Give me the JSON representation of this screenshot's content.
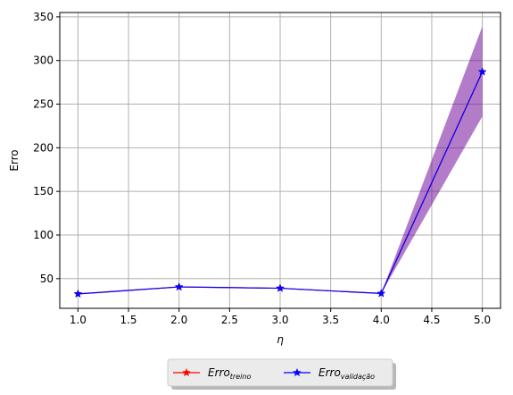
{
  "chart_data": {
    "type": "line",
    "title": "",
    "xlabel": "η",
    "ylabel": "Erro",
    "x": [
      1.0,
      2.0,
      3.0,
      4.0,
      5.0
    ],
    "xlim": [
      0.82,
      5.18
    ],
    "ylim": [
      16,
      355
    ],
    "xticks": [
      "1.0",
      "1.5",
      "2.0",
      "2.5",
      "3.0",
      "3.5",
      "4.0",
      "4.5",
      "5.0"
    ],
    "xtick_values": [
      1.0,
      1.5,
      2.0,
      2.5,
      3.0,
      3.5,
      4.0,
      4.5,
      5.0
    ],
    "yticks": [
      "50",
      "100",
      "150",
      "200",
      "250",
      "300",
      "350"
    ],
    "ytick_values": [
      50,
      100,
      150,
      200,
      250,
      300,
      350
    ],
    "grid": true,
    "legend_position": "bottom-center, below plot",
    "series": [
      {
        "name": "treino",
        "legend_base": "Erro",
        "color": "#ff0000",
        "marker": "star",
        "values": [
          32.5,
          40.5,
          39,
          33,
          287
        ],
        "band_low": [
          32.5,
          40.5,
          39,
          33,
          236
        ],
        "band_high": [
          32.5,
          40.5,
          39,
          33,
          339
        ],
        "band_color": "#ff0000"
      },
      {
        "name": "validação",
        "legend_base": "Erro",
        "color": "#0000ff",
        "marker": "star",
        "values": [
          32.5,
          40.5,
          39,
          33,
          287
        ],
        "band_low": [
          32.5,
          40.5,
          39,
          33,
          236
        ],
        "band_high": [
          32.5,
          40.5,
          39,
          33,
          339
        ],
        "band_color": "#0000ff"
      }
    ]
  }
}
